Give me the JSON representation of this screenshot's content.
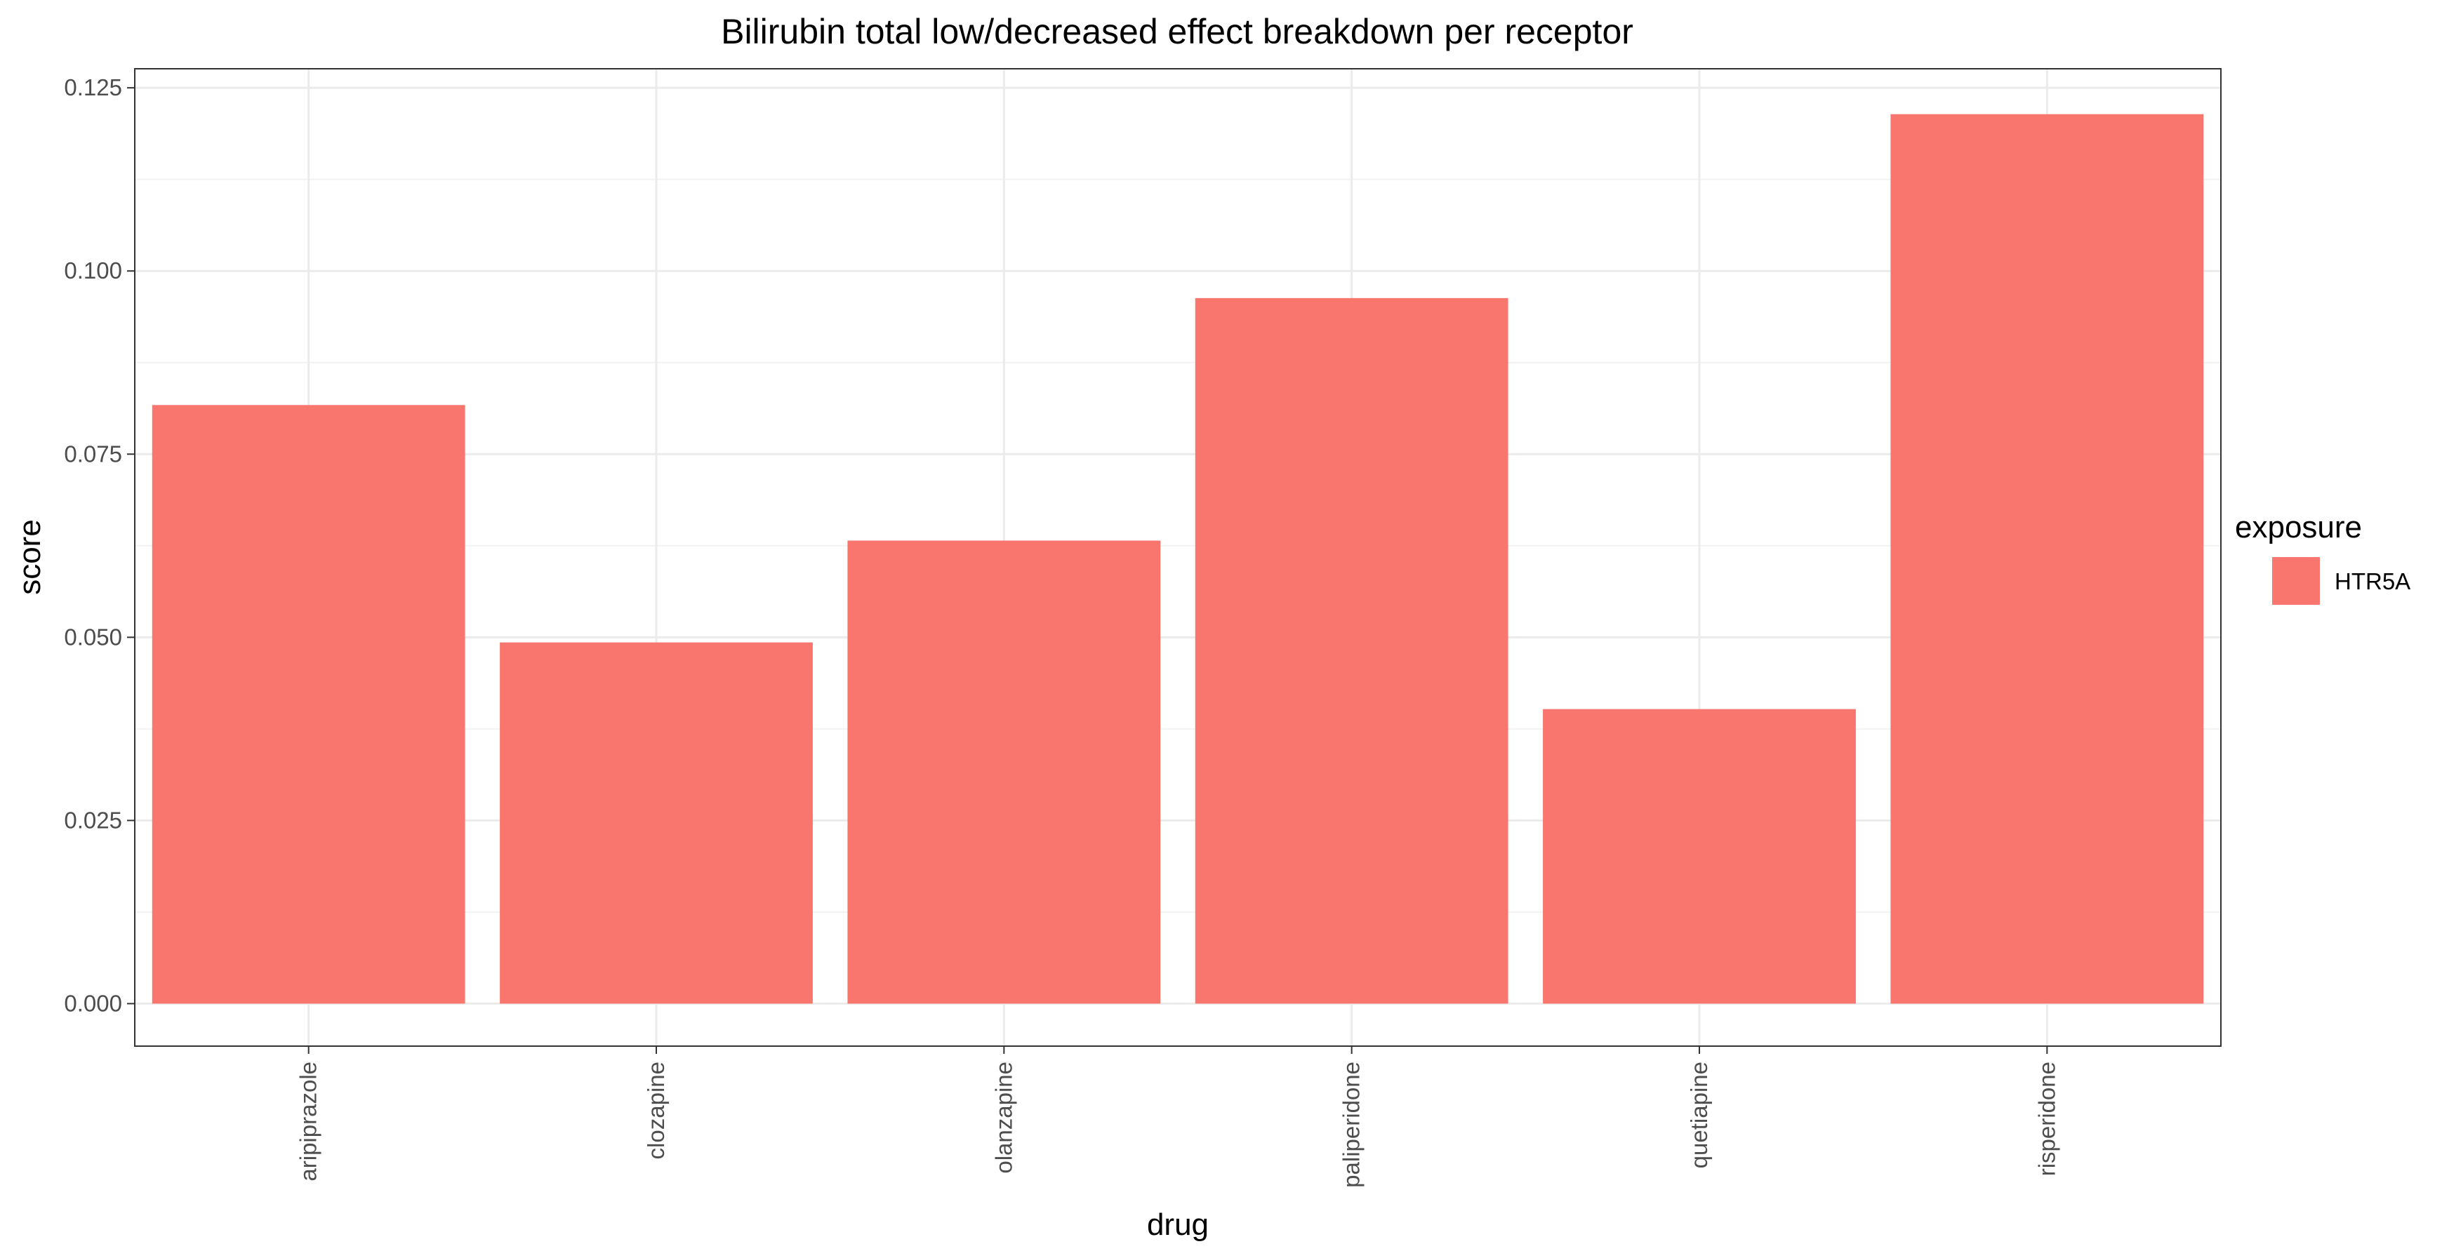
{
  "chart_data": {
    "type": "bar",
    "title": "Bilirubin total low/decreased effect breakdown per receptor",
    "xlabel": "drug",
    "ylabel": "score",
    "categories": [
      "aripiprazole",
      "clozapine",
      "olanzapine",
      "paliperidone",
      "quetiapine",
      "risperidone"
    ],
    "series": [
      {
        "name": "HTR5A",
        "color": "#F8766D",
        "values": [
          0.0817,
          0.0493,
          0.0632,
          0.0963,
          0.0402,
          0.1214
        ]
      }
    ],
    "ylim": [
      -0.0058,
      0.1276
    ],
    "yticks": [
      0.0,
      0.025,
      0.05,
      0.075,
      0.1,
      0.125
    ],
    "ytick_labels": [
      "0.000",
      "0.025",
      "0.050",
      "0.075",
      "0.100",
      "0.125"
    ],
    "grid": true,
    "legend": {
      "title": "exposure",
      "position": "right"
    }
  }
}
